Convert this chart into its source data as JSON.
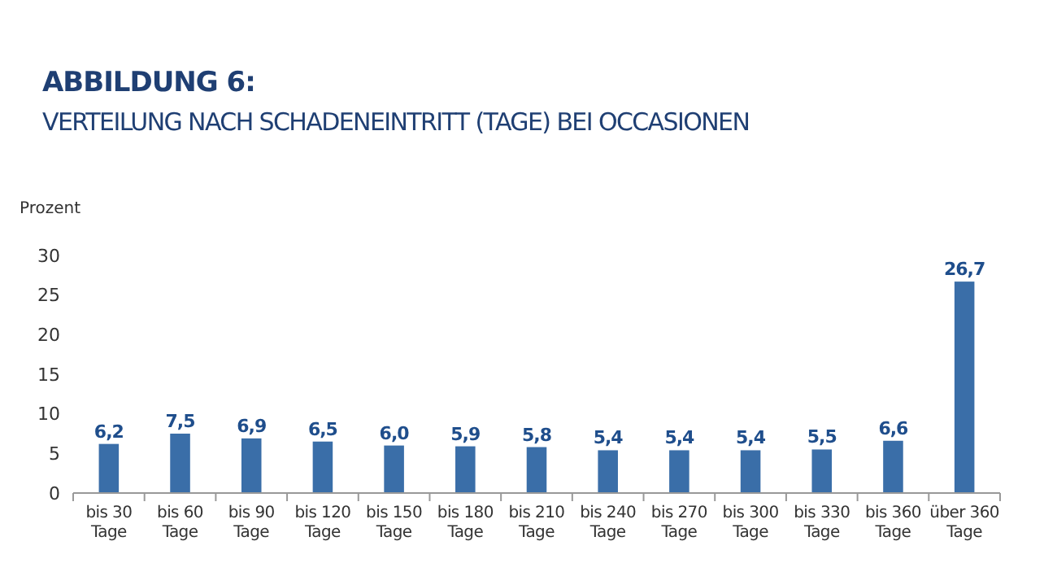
{
  "chart_data": {
    "type": "bar",
    "title": "ABBILDUNG 6:",
    "subtitle": "VERTEILUNG NACH SCHADENEINTRITT (TAGE) BEI OCCASIONEN",
    "ylabel": "Prozent",
    "categories": [
      "bis 30 Tage",
      "bis 60 Tage",
      "bis 90 Tage",
      "bis 120 Tage",
      "bis 150 Tage",
      "bis 180 Tage",
      "bis 210 Tage",
      "bis 240 Tage",
      "bis 270 Tage",
      "bis 300 Tage",
      "bis 330 Tage",
      "bis 360 Tage",
      "über 360 Tage"
    ],
    "values": [
      6.2,
      7.5,
      6.9,
      6.5,
      6.0,
      5.9,
      5.8,
      5.4,
      5.4,
      5.4,
      5.5,
      6.6,
      26.7
    ],
    "value_labels": [
      "6,2",
      "7,5",
      "6,9",
      "6,5",
      "6,0",
      "5,9",
      "5,8",
      "5,4",
      "5,4",
      "5,4",
      "5,5",
      "6,6",
      "26,7"
    ],
    "color": "#3a6ea8",
    "ylim": [
      0,
      30
    ],
    "yticks": [
      0,
      5,
      10,
      15,
      20,
      25,
      30
    ],
    "grid": false
  }
}
